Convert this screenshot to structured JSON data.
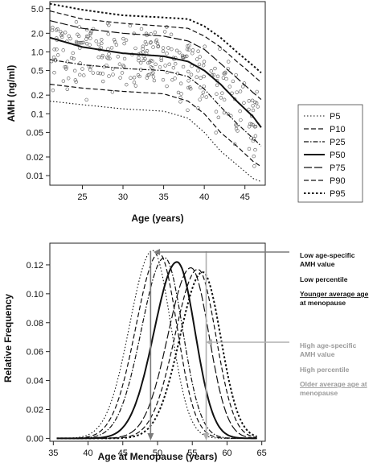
{
  "chart_data": [
    {
      "type": "scatter",
      "xlabel": "Age (years)",
      "ylabel": "AMH (ng/ml)",
      "y_scale": "log",
      "xlim": [
        21,
        47.5
      ],
      "ylim": [
        0.007,
        6.5
      ],
      "x_ticks": [
        "25",
        "30",
        "35",
        "40",
        "45"
      ],
      "y_ticks": [
        "5.0",
        "2.0",
        "1.0",
        "0.5",
        "0.2",
        "0.1",
        "0.05",
        "0.02",
        "0.01"
      ],
      "legend": {
        "placement": "right",
        "entries": [
          "P5",
          "P10",
          "P25",
          "P50",
          "P75",
          "P90",
          "P95"
        ]
      },
      "x": [
        21,
        25,
        30,
        35,
        38,
        40,
        42,
        44,
        46,
        47
      ],
      "series": [
        {
          "name": "P5",
          "style": "dotted",
          "values": [
            0.16,
            0.14,
            0.12,
            0.11,
            0.085,
            0.05,
            0.025,
            0.015,
            0.009,
            0.008
          ]
        },
        {
          "name": "P10",
          "style": "dashed",
          "values": [
            0.3,
            0.26,
            0.23,
            0.21,
            0.16,
            0.1,
            0.05,
            0.03,
            0.017,
            0.014
          ]
        },
        {
          "name": "P25",
          "style": "dashdot",
          "values": [
            0.75,
            0.62,
            0.54,
            0.5,
            0.4,
            0.25,
            0.13,
            0.07,
            0.04,
            0.03
          ]
        },
        {
          "name": "P50",
          "style": "solid",
          "values": [
            1.7,
            1.2,
            0.95,
            0.85,
            0.7,
            0.5,
            0.3,
            0.16,
            0.09,
            0.06
          ]
        },
        {
          "name": "P75",
          "style": "longdash",
          "values": [
            3.2,
            2.4,
            2.0,
            1.8,
            1.5,
            1.1,
            0.65,
            0.38,
            0.22,
            0.17
          ]
        },
        {
          "name": "P90",
          "style": "dashed",
          "values": [
            4.6,
            3.4,
            2.9,
            2.6,
            2.4,
            1.8,
            1.2,
            0.7,
            0.42,
            0.32
          ]
        },
        {
          "name": "P95",
          "style": "bolddot",
          "values": [
            6.0,
            4.8,
            3.9,
            3.6,
            3.4,
            2.6,
            1.7,
            1.0,
            0.6,
            0.46
          ]
        }
      ]
    },
    {
      "type": "line",
      "xlabel": "Age at Menopause (years)",
      "ylabel": "Relative Frequency",
      "xlim": [
        34.5,
        65.5
      ],
      "ylim": [
        -0.002,
        0.135
      ],
      "x_ticks": [
        "35",
        "40",
        "45",
        "50",
        "55",
        "60",
        "65"
      ],
      "y_ticks": [
        "0.00",
        "0.02",
        "0.04",
        "0.06",
        "0.08",
        "0.10",
        "0.12"
      ],
      "curves": [
        {
          "style": "dotted",
          "peak_x": 49.3,
          "peak_y": 0.13
        },
        {
          "style": "dashed",
          "peak_x": 50.2,
          "peak_y": 0.128
        },
        {
          "style": "dashdot",
          "peak_x": 51.0,
          "peak_y": 0.125
        },
        {
          "style": "solid",
          "peak_x": 52.8,
          "peak_y": 0.122
        },
        {
          "style": "longdash",
          "peak_x": 54.8,
          "peak_y": 0.118
        },
        {
          "style": "dashed",
          "peak_x": 55.8,
          "peak_y": 0.117
        },
        {
          "style": "bolddot",
          "peak_x": 56.5,
          "peak_y": 0.115
        }
      ],
      "markers": [
        {
          "x": 49.0,
          "color": "#7a7a7a"
        },
        {
          "x": 57.0,
          "color": "#b0b0b0"
        }
      ],
      "annotations": {
        "low": [
          "Low age-specific",
          "AMH value",
          "Low percentile",
          "Younger average age",
          "at menopause"
        ],
        "high": [
          "High age-specific",
          "AMH value",
          "High percentile",
          "Older average age at",
          "menopause"
        ]
      }
    }
  ]
}
